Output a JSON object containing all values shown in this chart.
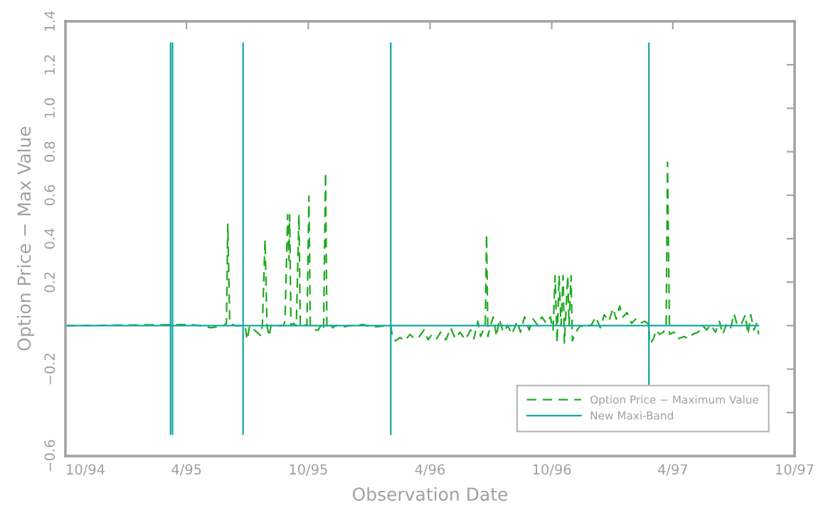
{
  "chart_data": {
    "type": "line",
    "xlabel": "Observation Date",
    "ylabel": "Option Price − Max Value",
    "xlim": [
      "1994-10-01",
      "1997-10-01"
    ],
    "ylim": [
      -0.6,
      1.4
    ],
    "xticks": [
      {
        "value": "1994-10-01",
        "label": "10/94"
      },
      {
        "value": "1995-04-01",
        "label": "4/95"
      },
      {
        "value": "1995-10-01",
        "label": "10/95"
      },
      {
        "value": "1996-04-01",
        "label": "4/96"
      },
      {
        "value": "1996-10-01",
        "label": "10/96"
      },
      {
        "value": "1997-04-01",
        "label": "4/97"
      },
      {
        "value": "1997-10-01",
        "label": "10/97"
      }
    ],
    "yticks": [
      {
        "value": -0.6,
        "label": "−0.6"
      },
      {
        "value": -0.4,
        "label": null
      },
      {
        "value": -0.2,
        "label": "−0.2"
      },
      {
        "value": 0,
        "label": null
      },
      0.2,
      0.4,
      0.6,
      0.8,
      {
        "value": 1.0,
        "label": "1.0"
      },
      1.2,
      1.4
    ],
    "legend": "bottom right",
    "series": [
      {
        "name": "Option Price − Maximum Value",
        "color": "#1faa1f",
        "line_style": "dashed",
        "x": [
          "1994-10-01",
          "1995-04-08",
          "1995-04-21",
          "1995-05-08",
          "1995-05-27",
          "1995-05-31",
          "1995-06-02",
          "1995-06-05",
          "1995-06-13",
          "1995-06-28",
          "1995-07-01",
          "1995-07-05",
          "1995-07-21",
          "1995-07-24",
          "1995-07-28",
          "1995-07-31",
          "1995-08-03",
          "1995-08-06",
          "1995-08-25",
          "1995-08-27",
          "1995-08-31",
          "1995-09-02",
          "1995-09-03",
          "1995-09-05",
          "1995-09-09",
          "1995-09-13",
          "1995-09-17",
          "1995-09-19",
          "1995-09-22",
          "1995-09-29",
          "1995-10-02",
          "1995-10-04",
          "1995-10-09",
          "1995-10-16",
          "1995-10-20",
          "1995-10-24",
          "1995-10-27",
          "1995-10-29",
          "1995-11-03",
          "1995-11-07",
          "1995-11-10",
          "1995-11-25",
          "1995-12-02",
          "1995-12-23",
          "1996-01-02",
          "1996-01-13",
          "1996-01-29",
          "1996-02-02",
          "1996-02-05",
          "1996-02-09",
          "1996-02-16",
          "1996-02-23",
          "1996-03-02",
          "1996-03-08",
          "1996-03-16",
          "1996-03-23",
          "1996-03-29",
          "1996-04-04",
          "1996-04-11",
          "1996-04-17",
          "1996-04-25",
          "1996-05-02",
          "1996-05-09",
          "1996-05-16",
          "1996-05-24",
          "1996-06-01",
          "1996-06-06",
          "1996-06-12",
          "1996-06-16",
          "1996-06-23",
          "1996-06-25",
          "1996-06-27",
          "1996-07-01",
          "1996-07-05",
          "1996-07-10",
          "1996-07-14",
          "1996-07-20",
          "1996-07-27",
          "1996-08-02",
          "1996-08-10",
          "1996-08-15",
          "1996-08-21",
          "1996-08-28",
          "1996-09-03",
          "1996-09-10",
          "1996-09-16",
          "1996-09-23",
          "1996-09-29",
          "1996-10-03",
          "1996-10-06",
          "1996-10-09",
          "1996-10-12",
          "1996-10-15",
          "1996-10-18",
          "1996-10-20",
          "1996-10-25",
          "1996-10-27",
          "1996-10-30",
          "1996-11-01",
          "1996-11-06",
          "1996-11-13",
          "1996-11-19",
          "1996-11-30",
          "1996-12-06",
          "1996-12-13",
          "1996-12-19",
          "1996-12-26",
          "1997-01-01",
          "1997-01-06",
          "1997-01-11",
          "1997-01-16",
          "1997-01-22",
          "1997-01-29",
          "1997-02-04",
          "1997-02-10",
          "1997-02-18",
          "1997-02-24",
          "1997-02-25",
          "1997-03-03",
          "1997-03-07",
          "1997-03-12",
          "1997-03-18",
          "1997-03-22",
          "1997-03-24",
          "1997-03-27",
          "1997-04-03",
          "1997-04-09",
          "1997-04-18",
          "1997-04-24",
          "1997-05-01",
          "1997-05-09",
          "1997-05-16",
          "1997-05-22",
          "1997-05-28",
          "1997-06-04",
          "1997-06-10",
          "1997-06-15",
          "1997-06-21",
          "1997-06-27",
          "1997-07-02",
          "1997-07-06",
          "1997-07-12",
          "1997-07-19",
          "1997-07-23",
          "1997-07-27",
          "1997-08-01",
          "1997-08-05",
          "1997-08-08"
        ],
        "values": [
          0,
          0.005,
          0,
          -0.01,
          0,
          0.01,
          0.467,
          0.01,
          0,
          0,
          -0.065,
          0,
          -0.045,
          0,
          0.396,
          0,
          -0.05,
          0,
          0,
          0.02,
          0.51,
          0.3,
          0.51,
          0,
          0.01,
          0,
          0.51,
          0,
          0.01,
          0,
          0.596,
          0,
          -0.02,
          -0.02,
          0,
          -0.02,
          0.705,
          -0.01,
          0.005,
          -0.01,
          0,
          -0.005,
          0,
          0.005,
          -0.005,
          -0.005,
          0,
          0,
          -0.06,
          -0.07,
          -0.055,
          -0.07,
          -0.04,
          -0.06,
          -0.05,
          -0.02,
          -0.065,
          -0.04,
          -0.06,
          -0.03,
          -0.065,
          -0.01,
          -0.06,
          -0.03,
          -0.065,
          -0.02,
          -0.06,
          0.02,
          -0.05,
          0,
          0.42,
          -0.05,
          0,
          0.04,
          -0.05,
          0.03,
          -0.03,
          0,
          -0.04,
          0.02,
          -0.03,
          0.04,
          -0.02,
          0.03,
          0,
          0.04,
          0.01,
          0.04,
          -0.02,
          0.23,
          -0.08,
          0.23,
          0,
          0.23,
          -0.08,
          0.23,
          0,
          0.23,
          -0.07,
          -0.03,
          0,
          -0.01,
          0.005,
          0.04,
          -0.01,
          0.05,
          0.02,
          0.08,
          0.03,
          0.09,
          0.04,
          0.06,
          0.01,
          0.03,
          0.01,
          0.02,
          0.005,
          -0.085,
          -0.06,
          -0.02,
          -0.04,
          -0.03,
          0,
          0.752,
          -0.04,
          -0.03,
          -0.06,
          -0.05,
          -0.06,
          -0.04,
          -0.03,
          0,
          -0.02,
          0.005,
          -0.03,
          0.02,
          -0.04,
          0.01,
          -0.01,
          0.055,
          0.01,
          0,
          0.05,
          -0.04,
          0.05,
          -0.02,
          0.01,
          -0.04
        ]
      },
      {
        "name": "New Maxi-Band",
        "color": "#14a8a8",
        "line_style": "solid",
        "x": [
          "1994-10-01",
          "1995-03-08",
          "1995-03-08",
          "1995-03-08",
          "1995-03-08",
          "1995-03-11",
          "1995-03-11",
          "1995-03-11",
          "1995-03-11",
          "1995-06-25",
          "1995-06-25",
          "1995-06-25",
          "1995-06-25",
          "1996-02-02",
          "1996-02-02",
          "1996-02-02",
          "1996-02-02",
          "1997-02-24",
          "1997-02-24",
          "1997-02-24",
          "1997-02-24",
          "1997-08-08"
        ],
        "values": [
          0,
          0,
          1.3,
          -0.5,
          0,
          0,
          1.3,
          -0.5,
          0,
          0,
          1.3,
          -0.5,
          0,
          0,
          1.3,
          -0.5,
          0,
          0,
          1.3,
          -0.27,
          0,
          0
        ]
      }
    ]
  }
}
